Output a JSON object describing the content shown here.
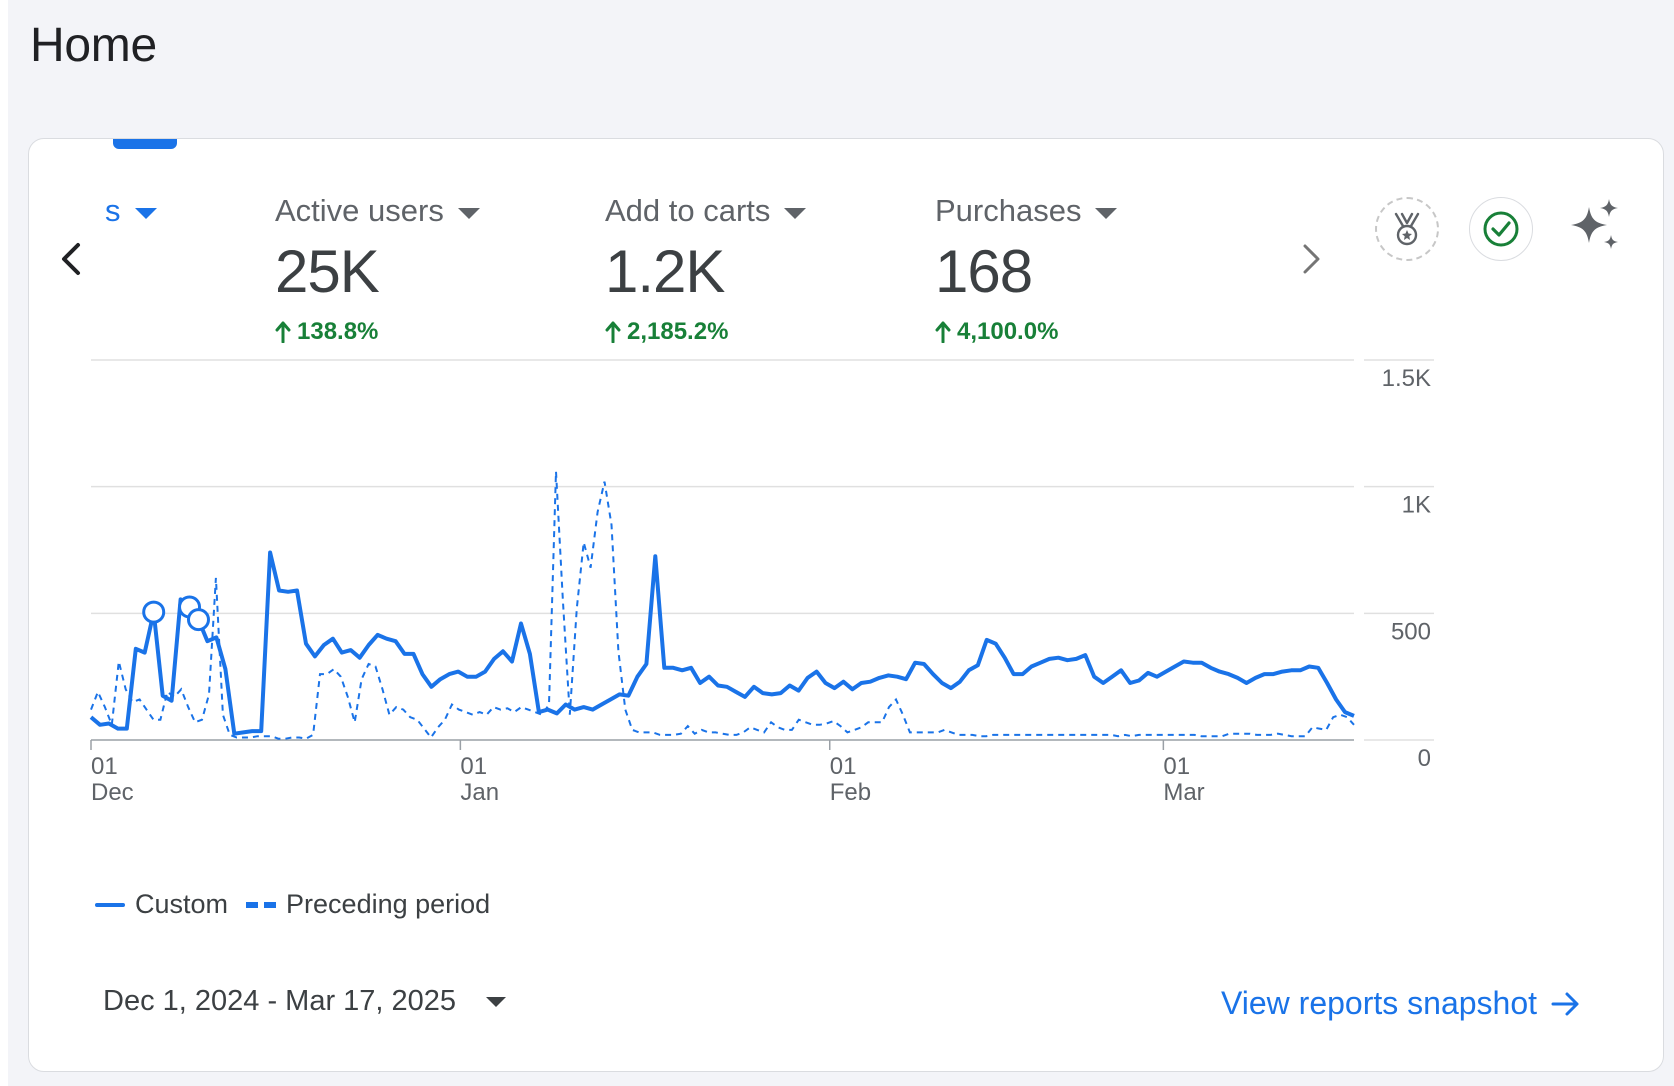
{
  "page": {
    "title": "Home"
  },
  "metrics": [
    {
      "label": "s",
      "clipped": true
    },
    {
      "label": "Active users",
      "value": "25K",
      "change": "138.8%"
    },
    {
      "label": "Add to carts",
      "value": "1.2K",
      "change": "2,185.2%"
    },
    {
      "label": "Purchases",
      "value": "168",
      "change": "4,100.0%"
    }
  ],
  "toolbar": {
    "icons": [
      "medal-icon",
      "check-circle-icon",
      "sparkle-icon"
    ]
  },
  "colors": {
    "accent": "#1a73e8",
    "positive": "#188038",
    "grid": "#e0e0e0"
  },
  "chart_data": {
    "type": "line",
    "x_start": "2024-12-01",
    "x_end": "2025-03-17",
    "x_ticks": [
      {
        "day": "01",
        "month": "Dec",
        "date": "2024-12-01"
      },
      {
        "day": "01",
        "month": "Jan",
        "date": "2025-01-01"
      },
      {
        "day": "01",
        "month": "Feb",
        "date": "2025-02-01"
      },
      {
        "day": "01",
        "month": "Mar",
        "date": "2025-03-01"
      }
    ],
    "y_ticks": [
      "0",
      "500",
      "1K",
      "1.5K"
    ],
    "ylim": [
      0,
      1500
    ],
    "y_tick_values": [
      0,
      500,
      1000,
      1500
    ],
    "grid": true,
    "legend_position": "bottom-left",
    "series": [
      {
        "name": "Custom",
        "style": "solid",
        "values": [
          90,
          60,
          65,
          45,
          45,
          360,
          345,
          505,
          175,
          155,
          555,
          525,
          475,
          390,
          405,
          280,
          25,
          30,
          35,
          35,
          740,
          590,
          585,
          590,
          380,
          330,
          375,
          400,
          345,
          355,
          325,
          375,
          415,
          400,
          390,
          340,
          340,
          260,
          210,
          240,
          260,
          270,
          250,
          250,
          270,
          320,
          350,
          310,
          460,
          340,
          110,
          120,
          105,
          140,
          120,
          130,
          120,
          140,
          160,
          180,
          175,
          250,
          300,
          725,
          285,
          285,
          275,
          285,
          225,
          250,
          215,
          210,
          190,
          170,
          210,
          185,
          180,
          185,
          215,
          195,
          245,
          270,
          225,
          205,
          230,
          200,
          225,
          230,
          245,
          255,
          250,
          240,
          305,
          300,
          260,
          225,
          205,
          230,
          275,
          295,
          395,
          380,
          325,
          260,
          260,
          290,
          305,
          320,
          325,
          315,
          320,
          335,
          250,
          225,
          250,
          275,
          225,
          235,
          265,
          250,
          270,
          290,
          310,
          305,
          305,
          285,
          270,
          260,
          245,
          225,
          245,
          260,
          260,
          270,
          275,
          275,
          290,
          285,
          225,
          160,
          110,
          95
        ],
        "markers": [
          7,
          11,
          12
        ]
      },
      {
        "name": "Preceding period",
        "style": "dashed",
        "values": [
          120,
          190,
          130,
          60,
          310,
          200,
          150,
          160,
          120,
          80,
          80,
          190,
          170,
          200,
          130,
          70,
          80,
          180,
          640,
          100,
          20,
          10,
          10,
          10,
          15,
          15,
          15,
          5,
          5,
          10,
          10,
          5,
          20,
          260,
          260,
          280,
          250,
          170,
          70,
          240,
          300,
          290,
          200,
          100,
          130,
          120,
          90,
          80,
          45,
          10,
          50,
          80,
          140,
          120,
          110,
          100,
          110,
          100,
          130,
          120,
          125,
          110,
          130,
          120,
          110,
          100,
          140,
          1060,
          550,
          100,
          520,
          780,
          680,
          900,
          1020,
          850,
          350,
          120,
          40,
          30,
          30,
          30,
          20,
          20,
          20,
          25,
          55,
          25,
          40,
          30,
          30,
          25,
          20,
          20,
          30,
          50,
          40,
          30,
          70,
          50,
          40,
          40,
          80,
          70,
          60,
          60,
          65,
          75,
          55,
          30,
          40,
          50,
          70,
          70,
          70,
          130,
          160,
          100,
          30,
          30,
          30,
          30,
          30,
          40,
          30,
          20,
          20,
          20,
          15,
          15,
          20,
          20,
          20,
          20,
          20,
          20,
          20,
          20,
          20,
          20,
          20,
          20,
          20,
          20,
          20,
          20,
          20,
          20,
          15,
          20,
          15,
          20,
          20,
          20,
          20,
          20,
          20,
          20,
          20,
          20,
          15,
          15,
          15,
          15,
          25,
          25,
          25,
          25,
          20,
          20,
          20,
          25,
          20,
          15,
          15,
          15,
          50,
          45,
          40,
          90,
          100,
          90,
          60
        ]
      }
    ]
  },
  "legend": {
    "items": [
      "Custom",
      "Preceding period"
    ]
  },
  "footer": {
    "date_range": "Dec 1, 2024 - Mar 17, 2025",
    "view_link": "View reports snapshot"
  }
}
